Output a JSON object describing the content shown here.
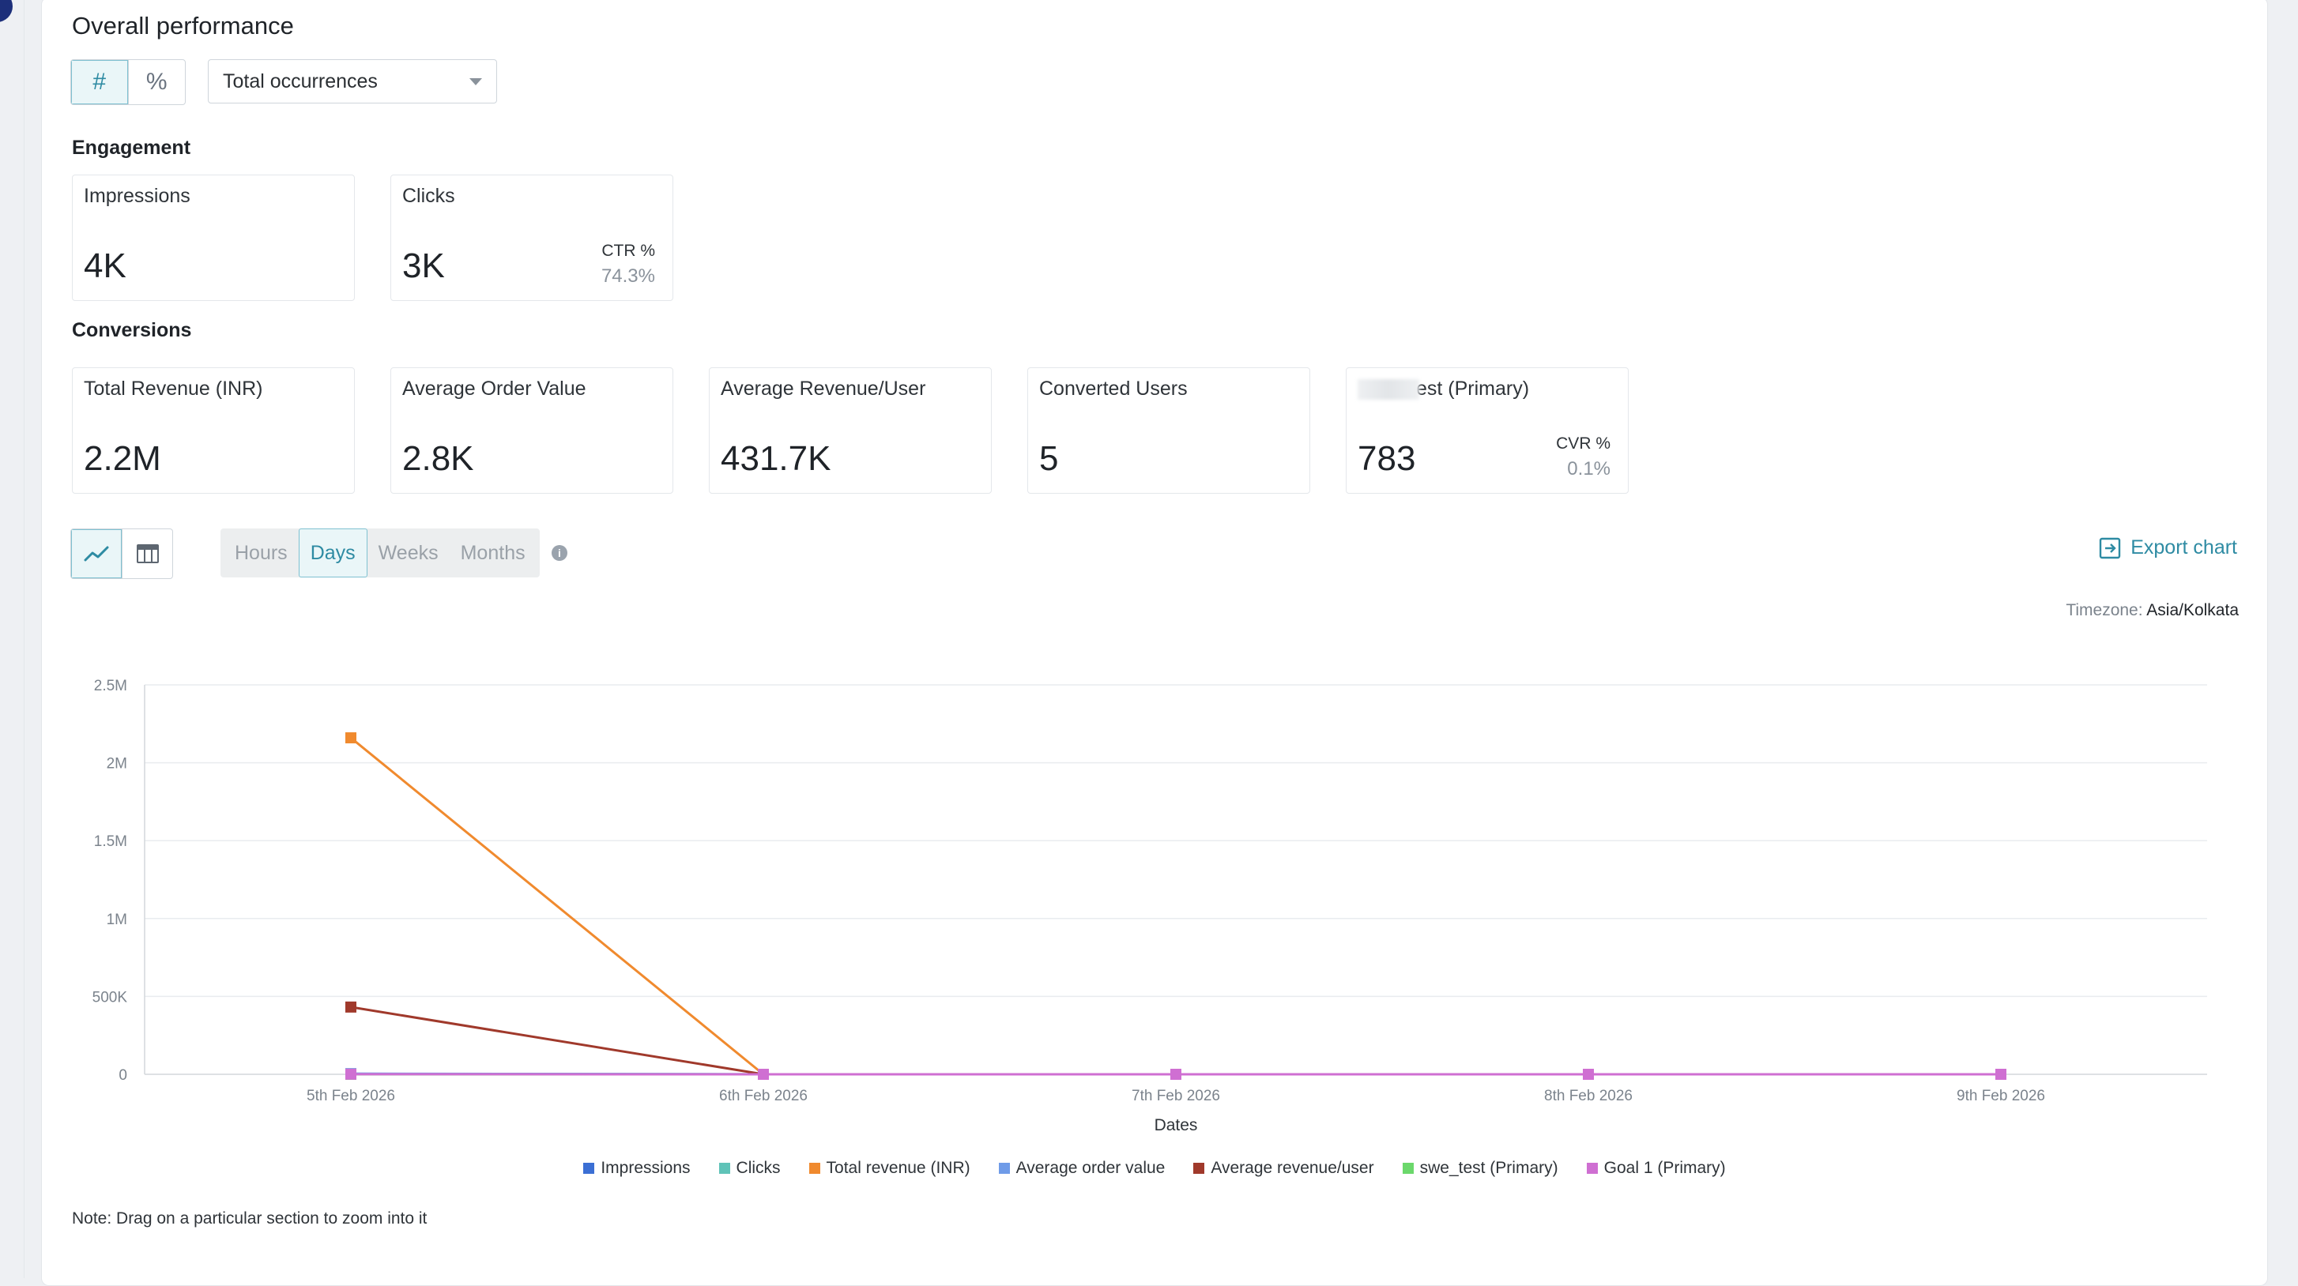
{
  "page": {
    "title": "Overall performance",
    "mode_toggle": [
      {
        "icon": "hash-icon",
        "glyph": "#",
        "active": true
      },
      {
        "icon": "percent-icon",
        "glyph": "%",
        "active": false
      }
    ],
    "metric_select": {
      "value": "Total occurrences"
    },
    "engagement": {
      "label": "Engagement",
      "cards": [
        {
          "name": "Impressions",
          "value": "4K"
        },
        {
          "name": "Clicks",
          "value": "3K",
          "sub_label": "CTR %",
          "sub_value": "74.3%"
        }
      ]
    },
    "conversions": {
      "label": "Conversions",
      "cards": [
        {
          "name": "Total Revenue (INR)",
          "value": "2.2M"
        },
        {
          "name": "Average Order Value",
          "value": "2.8K"
        },
        {
          "name": "Average Revenue/User",
          "value": "431.7K"
        },
        {
          "name": "Converted Users",
          "value": "5"
        },
        {
          "name": "est (Primary)",
          "value": "783",
          "sub_label": "CVR %",
          "sub_value": "0.1%"
        }
      ]
    },
    "granularity": [
      "Hours",
      "Days",
      "Weeks",
      "Months"
    ],
    "granularity_selected": "Days",
    "export_label": "Export chart",
    "timezone_label": "Timezone:",
    "timezone_value": "Asia/Kolkata",
    "note": "Note: Drag on a particular section to zoom into it"
  },
  "chart_data": {
    "type": "line",
    "x": [
      "5th Feb 2026",
      "6th Feb 2026",
      "7th Feb 2026",
      "8th Feb 2026",
      "9th Feb 2026"
    ],
    "xlabel": "Dates",
    "ylabel": "",
    "ylim": [
      0,
      2500000
    ],
    "yticks": [
      {
        "v": 0,
        "label": "0"
      },
      {
        "v": 500000,
        "label": "500K"
      },
      {
        "v": 1000000,
        "label": "1M"
      },
      {
        "v": 1500000,
        "label": "1.5M"
      },
      {
        "v": 2000000,
        "label": "2M"
      },
      {
        "v": 2500000,
        "label": "2.5M"
      }
    ],
    "grid": true,
    "legend_position": "bottom",
    "series": [
      {
        "name": "Impressions",
        "color": "#3b6fd4",
        "values": [
          3800,
          0,
          0,
          0,
          0
        ]
      },
      {
        "name": "Clicks",
        "color": "#5fc3b8",
        "values": [
          2800,
          0,
          0,
          0,
          0
        ]
      },
      {
        "name": "Total revenue (INR)",
        "color": "#f08a2e",
        "values": [
          2160000,
          0,
          0,
          0,
          0
        ]
      },
      {
        "name": "Average order value",
        "color": "#6f9be8",
        "values": [
          2800,
          0,
          0,
          0,
          0
        ]
      },
      {
        "name": "Average revenue/user",
        "color": "#a0392b",
        "values": [
          431700,
          0,
          0,
          0,
          0
        ]
      },
      {
        "name": "swe_test (Primary)",
        "color": "#6bd86b",
        "values": [
          5,
          0,
          0,
          0,
          0
        ]
      },
      {
        "name": "Goal 1 (Primary)",
        "color": "#cf6fd2",
        "values": [
          783,
          0,
          0,
          0,
          0
        ]
      }
    ]
  }
}
